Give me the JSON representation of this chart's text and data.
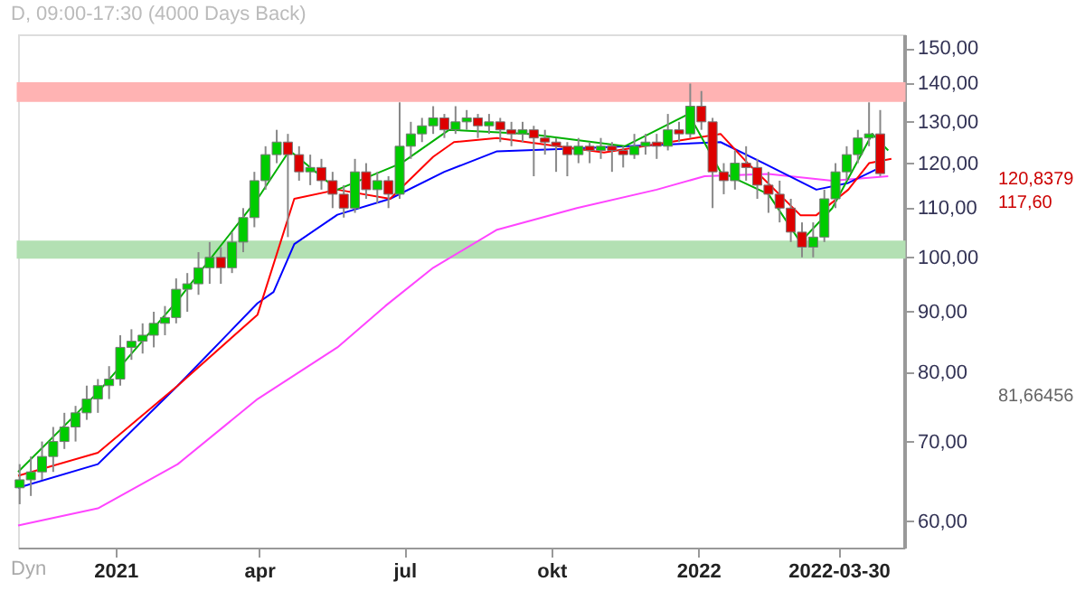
{
  "chart_data": {
    "type": "candlestick",
    "title": "D, 09:00-17:30 (4000 Days Back)",
    "x": [
      "2020-11-02",
      "2020-11-09",
      "2020-11-16",
      "2020-11-23",
      "2020-11-30",
      "2020-12-07",
      "2020-12-14",
      "2020-12-21",
      "2020-12-28",
      "2021-01-04",
      "2021-01-11",
      "2021-01-18",
      "2021-01-25",
      "2021-02-01",
      "2021-02-08",
      "2021-02-15",
      "2021-02-22",
      "2021-03-01",
      "2021-03-08",
      "2021-03-15",
      "2021-03-22",
      "2021-03-29",
      "2021-04-05",
      "2021-04-12",
      "2021-04-19",
      "2021-04-26",
      "2021-05-03",
      "2021-05-10",
      "2021-05-17",
      "2021-05-24",
      "2021-05-31",
      "2021-06-07",
      "2021-06-14",
      "2021-06-21",
      "2021-06-28",
      "2021-07-05",
      "2021-07-12",
      "2021-07-19",
      "2021-07-26",
      "2021-08-02",
      "2021-08-09",
      "2021-08-16",
      "2021-08-23",
      "2021-08-30",
      "2021-09-06",
      "2021-09-13",
      "2021-09-20",
      "2021-09-27",
      "2021-10-04",
      "2021-10-11",
      "2021-10-18",
      "2021-10-25",
      "2021-11-01",
      "2021-11-08",
      "2021-11-15",
      "2021-11-22",
      "2021-11-29",
      "2021-12-06",
      "2021-12-13",
      "2021-12-20",
      "2021-12-27",
      "2022-01-03",
      "2022-01-10",
      "2022-01-17",
      "2022-01-24",
      "2022-01-31",
      "2022-02-07",
      "2022-02-14",
      "2022-02-21",
      "2022-02-28",
      "2022-03-07",
      "2022-03-14",
      "2022-03-21",
      "2022-03-28",
      "2022-04-04",
      "2022-04-11",
      "2022-04-18",
      "2022-04-25"
    ],
    "ohlc": [
      [
        64,
        67,
        62,
        65
      ],
      [
        65,
        68,
        63,
        66
      ],
      [
        66,
        70,
        65,
        68
      ],
      [
        68,
        72,
        66,
        70
      ],
      [
        70,
        74,
        69,
        72
      ],
      [
        72,
        75,
        70,
        74
      ],
      [
        74,
        78,
        73,
        76
      ],
      [
        76,
        79,
        74,
        78
      ],
      [
        78,
        81,
        76,
        79
      ],
      [
        79,
        86,
        78,
        84
      ],
      [
        84,
        87,
        82,
        85
      ],
      [
        85,
        88,
        83,
        86
      ],
      [
        86,
        90,
        84,
        88
      ],
      [
        88,
        91,
        86,
        89
      ],
      [
        89,
        96,
        88,
        94
      ],
      [
        94,
        97,
        90,
        95
      ],
      [
        95,
        101,
        93,
        98
      ],
      [
        98,
        103,
        95,
        100
      ],
      [
        100,
        102,
        95,
        98
      ],
      [
        98,
        105,
        97,
        103
      ],
      [
        103,
        110,
        101,
        108
      ],
      [
        108,
        118,
        106,
        116
      ],
      [
        116,
        124,
        114,
        122
      ],
      [
        122,
        128,
        120,
        125
      ],
      [
        125,
        127,
        104,
        122
      ],
      [
        122,
        124,
        116,
        118
      ],
      [
        118,
        122,
        115,
        119
      ],
      [
        119,
        121,
        114,
        116
      ],
      [
        116,
        118,
        110,
        113
      ],
      [
        113,
        115,
        108,
        110
      ],
      [
        110,
        121,
        109,
        118
      ],
      [
        118,
        120,
        112,
        114
      ],
      [
        114,
        118,
        111,
        116
      ],
      [
        116,
        117,
        110,
        113
      ],
      [
        113,
        135,
        112,
        124
      ],
      [
        124,
        130,
        121,
        127
      ],
      [
        127,
        131,
        125,
        129
      ],
      [
        129,
        134,
        127,
        131
      ],
      [
        131,
        132,
        126,
        128
      ],
      [
        128,
        134,
        127,
        130
      ],
      [
        130,
        133,
        128,
        131
      ],
      [
        131,
        132,
        126,
        129
      ],
      [
        129,
        132,
        127,
        130
      ],
      [
        130,
        131,
        125,
        128
      ],
      [
        128,
        130,
        124,
        127
      ],
      [
        127,
        130,
        125,
        128
      ],
      [
        128,
        129,
        117,
        126
      ],
      [
        126,
        128,
        122,
        125
      ],
      [
        125,
        126,
        118,
        124
      ],
      [
        124,
        125,
        117,
        122
      ],
      [
        122,
        126,
        120,
        124
      ],
      [
        124,
        125,
        120,
        123
      ],
      [
        123,
        126,
        121,
        124
      ],
      [
        124,
        125,
        118,
        123
      ],
      [
        123,
        124,
        119,
        122
      ],
      [
        122,
        127,
        121,
        124
      ],
      [
        124,
        127,
        122,
        125
      ],
      [
        125,
        127,
        121,
        124
      ],
      [
        124,
        132,
        123,
        128
      ],
      [
        128,
        130,
        125,
        127
      ],
      [
        127,
        140,
        126,
        134
      ],
      [
        134,
        138,
        128,
        130
      ],
      [
        130,
        131,
        110,
        118
      ],
      [
        118,
        120,
        113,
        116
      ],
      [
        116,
        123,
        114,
        120
      ],
      [
        120,
        124,
        116,
        119
      ],
      [
        119,
        121,
        112,
        115
      ],
      [
        115,
        118,
        109,
        113
      ],
      [
        113,
        116,
        107,
        110
      ],
      [
        110,
        112,
        103,
        105
      ],
      [
        105,
        107,
        100,
        102
      ],
      [
        102,
        107,
        100,
        104
      ],
      [
        104,
        114,
        103,
        112
      ],
      [
        112,
        120,
        110,
        118
      ],
      [
        118,
        124,
        116,
        122
      ],
      [
        122,
        128,
        120,
        126
      ],
      [
        126,
        135,
        124,
        127
      ],
      [
        127,
        133,
        117,
        117.6
      ]
    ],
    "colors": [
      "#00cc00",
      "#00cc00",
      "#00cc00",
      "#00cc00",
      "#00cc00",
      "#00cc00",
      "#00cc00",
      "#00cc00",
      "#00cc00",
      "#00cc00",
      "#00cc00",
      "#00cc00",
      "#00cc00",
      "#00cc00",
      "#00cc00",
      "#00cc00",
      "#00cc00",
      "#00cc00",
      "#dd0000",
      "#00cc00",
      "#00cc00",
      "#00cc00",
      "#00cc00",
      "#00cc00",
      "#dd0000",
      "#dd0000",
      "#00cc00",
      "#dd0000",
      "#dd0000",
      "#dd0000",
      "#00cc00",
      "#dd0000",
      "#00cc00",
      "#dd0000",
      "#00cc00",
      "#00cc00",
      "#00cc00",
      "#00cc00",
      "#dd0000",
      "#00cc00",
      "#00cc00",
      "#dd0000",
      "#00cc00",
      "#dd0000",
      "#dd0000",
      "#00cc00",
      "#dd0000",
      "#dd0000",
      "#dd0000",
      "#dd0000",
      "#00cc00",
      "#dd0000",
      "#00cc00",
      "#dd0000",
      "#dd0000",
      "#00cc00",
      "#00cc00",
      "#dd0000",
      "#00cc00",
      "#dd0000",
      "#00cc00",
      "#dd0000",
      "#dd0000",
      "#dd0000",
      "#00cc00",
      "#dd0000",
      "#dd0000",
      "#dd0000",
      "#dd0000",
      "#dd0000",
      "#dd0000",
      "#00cc00",
      "#00cc00",
      "#00cc00",
      "#00cc00",
      "#00cc00",
      "#00cc00",
      "#dd0000"
    ],
    "series": [
      {
        "type": "line",
        "color": "#ff44ff",
        "x": [
          "2020-11-01",
          "2020-12-21",
          "2021-02-09",
          "2021-03-31",
          "2021-05-20",
          "2021-06-19",
          "2021-07-19",
          "2021-08-28",
          "2021-10-17",
          "2021-12-06",
          "2022-01-05",
          "2022-02-14",
          "2022-03-26",
          "2022-04-30"
        ],
        "values": [
          59.5,
          61.5,
          67,
          76,
          84,
          91,
          98,
          105.5,
          110,
          114,
          117,
          117.5,
          116,
          117
        ]
      },
      {
        "type": "line",
        "color": "#0000ff",
        "x": [
          "2020-11-01",
          "2020-12-21",
          "2021-02-09",
          "2021-03-31",
          "2021-04-10",
          "2021-04-23",
          "2021-05-20",
          "2021-06-22",
          "2021-07-26",
          "2021-08-28",
          "2021-10-17",
          "2022-01-15",
          "2022-02-11",
          "2022-03-16",
          "2022-04-05",
          "2022-04-25"
        ],
        "values": [
          64,
          67,
          78,
          91.5,
          93.5,
          102.6,
          108.6,
          112,
          118,
          122.8,
          123.5,
          125,
          120,
          114,
          115.5,
          119
        ]
      },
      {
        "type": "line",
        "color": "#ff0000",
        "x": [
          "2020-11-01",
          "2020-12-21",
          "2021-02-09",
          "2021-03-31",
          "2021-04-23",
          "2021-05-20",
          "2021-06-22",
          "2021-07-19",
          "2021-08-01",
          "2021-08-28",
          "2021-11-03",
          "2021-12-06",
          "2022-01-15",
          "2022-02-01",
          "2022-03-06",
          "2022-03-16",
          "2022-04-05",
          "2022-04-18",
          "2022-05-02"
        ],
        "values": [
          65.5,
          68.5,
          78,
          89.5,
          112,
          114,
          112,
          121.5,
          125,
          126,
          122.5,
          124.5,
          127,
          120,
          108.5,
          108.5,
          114,
          120,
          121
        ]
      },
      {
        "type": "line",
        "color": "#00b000",
        "x": [
          "2020-11-01",
          "2020-12-21",
          "2021-02-09",
          "2021-03-31",
          "2021-04-20",
          "2021-05-20",
          "2021-06-29",
          "2021-07-29",
          "2021-09-17",
          "2021-11-16",
          "2021-12-26",
          "2022-01-15",
          "2022-02-14",
          "2022-03-06",
          "2022-03-26",
          "2022-04-20",
          "2022-04-30"
        ],
        "values": [
          66,
          77,
          92,
          112,
          123,
          114,
          120,
          128,
          127,
          124,
          132,
          118,
          113,
          103,
          110,
          127,
          123
        ]
      }
    ],
    "bands": [
      {
        "axis": "y",
        "from": 135.5,
        "to": 140,
        "color": "#ffb3b3"
      },
      {
        "axis": "y",
        "from": 100,
        "to": 103,
        "color": "#b3e0b3"
      }
    ],
    "annotations": [
      "120,8379",
      "117,60",
      "81,66456",
      "Dyn"
    ],
    "xlim": [
      "2020-11-01",
      "2022-05-10"
    ],
    "xticks": [
      {
        "value": "2021-01-01",
        "label": "2021"
      },
      {
        "value": "2021-04-01",
        "label": "apr"
      },
      {
        "value": "2021-07-01",
        "label": "jul"
      },
      {
        "value": "2021-10-01",
        "label": "okt"
      },
      {
        "value": "2022-01-01",
        "label": "2022"
      },
      {
        "value": "2022-03-30",
        "label": "2022-03-30"
      }
    ],
    "ylim": [
      57,
      154
    ],
    "log": "y",
    "yticks": [
      {
        "value": 60,
        "label": "60,00"
      },
      {
        "value": 70,
        "label": "70,00"
      },
      {
        "value": 80,
        "label": "80,00"
      },
      {
        "value": 90,
        "label": "90,00"
      },
      {
        "value": 100,
        "label": "100,00"
      },
      {
        "value": 110,
        "label": "110,00"
      },
      {
        "value": 120,
        "label": "120,00"
      },
      {
        "value": 130,
        "label": "130,00"
      },
      {
        "value": 140,
        "label": "140,00"
      },
      {
        "value": 150,
        "label": "150,00"
      }
    ]
  }
}
